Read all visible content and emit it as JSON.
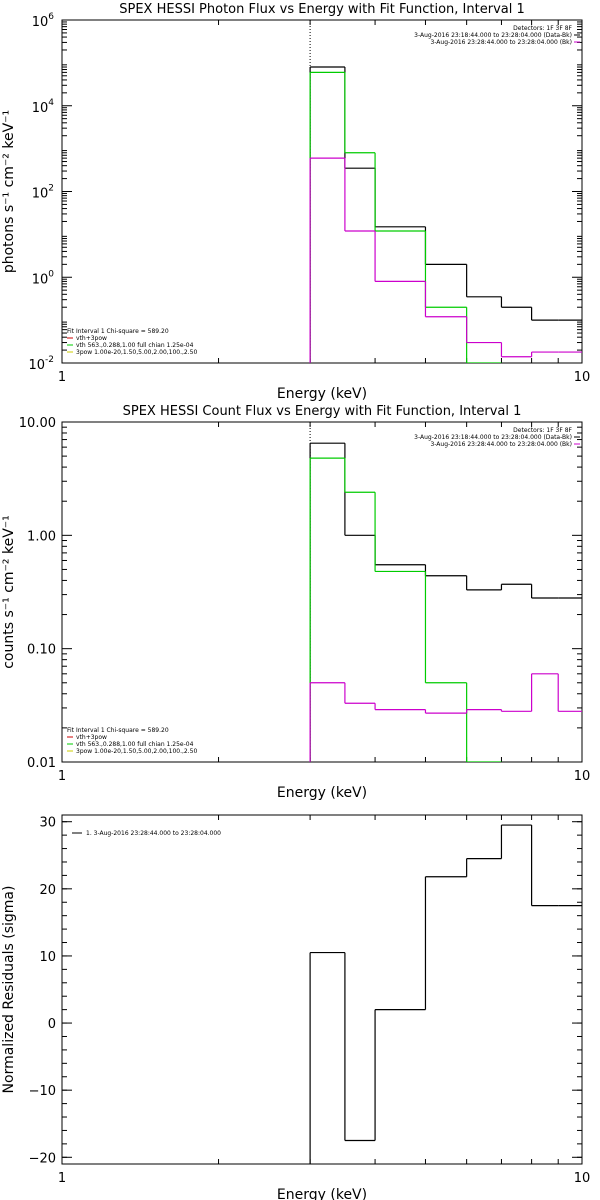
{
  "chart_data": [
    {
      "type": "line",
      "title": "SPEX HESSI Photon Flux vs Energy with Fit Function, Interval 1",
      "xlabel": "Energy (keV)",
      "ylabel": "photons s⁻¹ cm⁻² keV⁻¹",
      "xscale": "log",
      "yscale": "log",
      "xlim": [
        1,
        10
      ],
      "ylim": [
        0.01,
        1000000
      ],
      "xticks": [
        {
          "v": 1,
          "label": "1"
        },
        {
          "v": 10,
          "label": "10"
        }
      ],
      "yticks": [
        {
          "v": 0.01,
          "base": "10",
          "exp": "-2"
        },
        {
          "v": 1,
          "base": "10",
          "exp": "0"
        },
        {
          "v": 100,
          "base": "10",
          "exp": "2"
        },
        {
          "v": 10000,
          "base": "10",
          "exp": "4"
        },
        {
          "v": 1000000,
          "base": "10",
          "exp": "6"
        }
      ],
      "threshold_line_x": 3.0,
      "legend_top": [
        "Detectors: 1F 3F 8F",
        "3-Aug-2016 23:18:44.000 to 23:28:04.000 (Data-Bk)",
        "3-Aug-2016 23:28:44.000 to 23:28:04.000 (Bk)"
      ],
      "legend_top_colors": [
        "",
        "#000000",
        "#cc00cc"
      ],
      "legend_bottom": [
        "Fit Interval 1   Chi-square = 589.20",
        "vth+3pow",
        "vth 563.,0.288,1.00  full chian 1.25e-04",
        "3pow 1.00e-20,1.50,5.00,2.00,100.,2.50"
      ],
      "legend_bottom_colors": [
        "",
        "#cc0000",
        "#00cc00",
        "#cccc00"
      ],
      "series": [
        {
          "color": "#000000",
          "edges": [
            3.0,
            3.5,
            4.0,
            5.0,
            6.0,
            7.0,
            8.0,
            9.0,
            10.0
          ],
          "values": [
            80000,
            350,
            15,
            2.0,
            0.35,
            0.2,
            0.1,
            0.1
          ]
        },
        {
          "color": "#00cc00",
          "edges": [
            3.0,
            3.5,
            4.0,
            5.0,
            6.0,
            7.0
          ],
          "values": [
            60000,
            800,
            12,
            0.2,
            0.01
          ]
        },
        {
          "color": "#cc00cc",
          "edges": [
            3.0,
            3.5,
            4.0,
            5.0,
            6.0,
            7.0,
            8.0,
            9.0,
            10.0
          ],
          "values": [
            600,
            12,
            0.8,
            0.12,
            0.03,
            0.014,
            0.018,
            0.018
          ]
        }
      ]
    },
    {
      "type": "line",
      "title": "SPEX HESSI Count Flux vs Energy with Fit Function, Interval 1",
      "xlabel": "Energy (keV)",
      "ylabel": "counts s⁻¹ cm⁻² keV⁻¹",
      "xscale": "log",
      "yscale": "log",
      "xlim": [
        1,
        10
      ],
      "ylim": [
        0.01,
        10
      ],
      "xticks": [
        {
          "v": 1,
          "label": "1"
        },
        {
          "v": 10,
          "label": "10"
        }
      ],
      "yticks": [
        {
          "v": 0.01,
          "label": "0.01"
        },
        {
          "v": 0.1,
          "label": "0.10"
        },
        {
          "v": 1,
          "label": "1.00"
        },
        {
          "v": 10,
          "label": "10.00"
        }
      ],
      "threshold_line_x": 3.0,
      "legend_top": [
        "Detectors: 1F 3F 8F",
        "3-Aug-2016 23:18:44.000 to 23:28:04.000 (Data-Bk)",
        "3-Aug-2016 23:28:44.000 to 23:28:04.000 (Bk)"
      ],
      "legend_top_colors": [
        "",
        "#000000",
        "#cc00cc"
      ],
      "legend_bottom": [
        "Fit Interval 1   Chi-square = 589.20",
        "vth+3pow",
        "vth 563.,0.288,1.00  full chian 1.25e-04",
        "3pow 1.00e-20,1.50,5.00,2.00,100.,2.50"
      ],
      "legend_bottom_colors": [
        "",
        "#cc0000",
        "#00cc00",
        "#cccc00"
      ],
      "series": [
        {
          "color": "#000000",
          "edges": [
            3.0,
            3.5,
            4.0,
            5.0,
            6.0,
            7.0,
            8.0,
            9.0,
            10.0
          ],
          "values": [
            6.5,
            1.0,
            0.55,
            0.44,
            0.33,
            0.37,
            0.28,
            0.28
          ]
        },
        {
          "color": "#00cc00",
          "edges": [
            3.0,
            3.5,
            4.0,
            5.0,
            6.0,
            7.0
          ],
          "values": [
            4.8,
            2.4,
            0.48,
            0.05,
            0.01
          ]
        },
        {
          "color": "#cc00cc",
          "edges": [
            3.0,
            3.5,
            4.0,
            5.0,
            6.0,
            7.0,
            8.0,
            9.0,
            10.0
          ],
          "values": [
            0.05,
            0.033,
            0.029,
            0.027,
            0.029,
            0.028,
            0.06,
            0.028
          ]
        }
      ]
    },
    {
      "type": "line",
      "title": "",
      "xlabel": "Energy (keV)",
      "ylabel": "Normalized Residuals (sigma)",
      "xscale": "log",
      "yscale": "linear",
      "xlim": [
        1,
        10
      ],
      "ylim": [
        -21,
        31
      ],
      "xticks": [
        {
          "v": 1,
          "label": "1"
        },
        {
          "v": 10,
          "label": "10"
        }
      ],
      "yticks": [
        {
          "v": -20,
          "label": "−20"
        },
        {
          "v": -10,
          "label": "−10"
        },
        {
          "v": 0,
          "label": "0"
        },
        {
          "v": 10,
          "label": "10"
        },
        {
          "v": 20,
          "label": "20"
        },
        {
          "v": 30,
          "label": "30"
        }
      ],
      "legend_top": [
        "1.  3-Aug-2016 23:28:44.000 to 23:28:04.000"
      ],
      "series": [
        {
          "color": "#000000",
          "edges": [
            3.0,
            3.5,
            4.0,
            5.0,
            6.0,
            7.0,
            8.0,
            9.0,
            10.0
          ],
          "values": [
            10.5,
            -17.5,
            2.0,
            21.8,
            24.5,
            29.5,
            17.5,
            17.5
          ]
        }
      ]
    }
  ]
}
